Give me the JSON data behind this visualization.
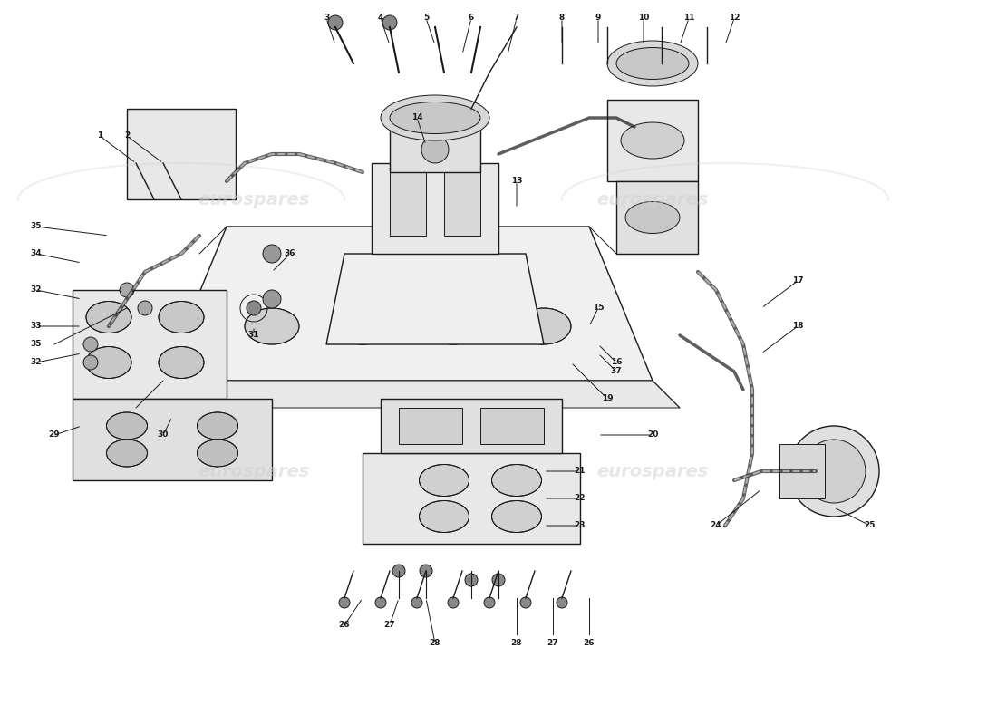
{
  "title": "",
  "background_color": "#ffffff",
  "watermark_text": "eurospares",
  "watermark_color": "#d0d0d0",
  "line_color": "#1a1a1a",
  "label_color": "#1a1a1a",
  "part_numbers": [
    1,
    2,
    3,
    4,
    5,
    6,
    7,
    8,
    9,
    10,
    11,
    12,
    13,
    14,
    15,
    16,
    17,
    18,
    19,
    20,
    21,
    22,
    23,
    24,
    25,
    26,
    27,
    28,
    29,
    30,
    31,
    32,
    33,
    34,
    35,
    36,
    37
  ],
  "figsize": [
    11.0,
    8.0
  ],
  "dpi": 100
}
